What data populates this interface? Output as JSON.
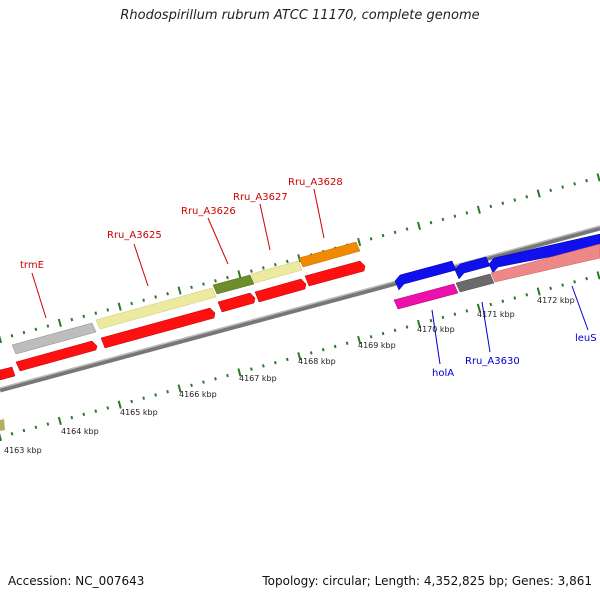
{
  "header": {
    "title": "Rhodospirillum rubrum ATCC 11170, complete genome"
  },
  "footer": {
    "accession": "Accession: NC_007643",
    "summary": "Topology: circular; Length: 4,352,825 bp; Genes: 3,861"
  },
  "colors": {
    "backbone": "#7a7a7a",
    "tick": "#2a7a2a",
    "label_red": "#cc0000",
    "label_blue": "#0000cc",
    "red": "#ff1010",
    "pale_yellow": "#eeeca0",
    "olive": "#6f8c2a",
    "orange": "#f08a00",
    "silver": "#bbbbbb",
    "blue": "#1010ee",
    "magenta": "#ee10aa",
    "dark_gray": "#6a6a6a",
    "salmon": "#ee8888"
  },
  "scale_labels": [
    "4163 kbp",
    "4164 kbp",
    "4165 kbp",
    "4166 kbp",
    "4167 kbp",
    "4168 kbp",
    "4169 kbp",
    "4170 kbp",
    "4171 kbp",
    "4172 kbp"
  ],
  "gene_labels": {
    "trmE": "trmE",
    "rru_a3625": "Rru_A3625",
    "rru_a3626": "Rru_A3626",
    "rru_a3627": "Rru_A3627",
    "rru_a3628": "Rru_A3628",
    "holA": "holA",
    "rru_a3630": "Rru_A3630",
    "leuS": "leuS"
  }
}
